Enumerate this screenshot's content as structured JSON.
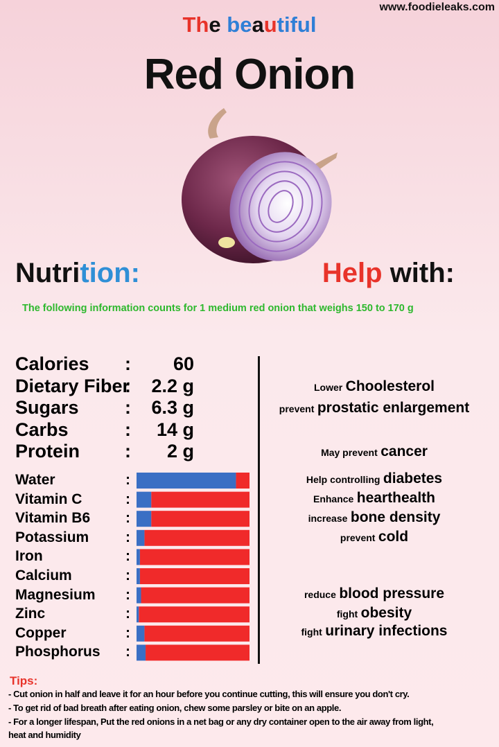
{
  "header": {
    "site": "www.foodieleaks.com",
    "subtitle_parts": [
      {
        "text": "Th",
        "color": "#e8332a"
      },
      {
        "text": "e ",
        "color": "#111111"
      },
      {
        "text": "be",
        "color": "#2f7fd6"
      },
      {
        "text": "a",
        "color": "#111111"
      },
      {
        "text": "u",
        "color": "#e8332a"
      },
      {
        "text": "ti",
        "color": "#2f7fd6"
      },
      {
        "text": "ful",
        "color": "#2f7fd6"
      }
    ],
    "title": "Red Onion"
  },
  "nutrition": {
    "heading_parts": [
      {
        "text": "Nutri",
        "color": "#111111"
      },
      {
        "text": "tion:",
        "color": "#2f8fd6"
      }
    ],
    "note": "The following information counts for 1 medium red onion that weighs 150 to 170 g",
    "separator": ":",
    "facts": [
      {
        "label": "Calories",
        "value": "60"
      },
      {
        "label": "Dietary Fiber",
        "value": "2.2 g"
      },
      {
        "label": "Sugars",
        "value": "6.3 g"
      },
      {
        "label": "Carbs",
        "value": "14 g"
      },
      {
        "label": "Protein",
        "value": "2 g"
      }
    ],
    "xlim": [
      0,
      100
    ],
    "fill_color": "#3a6fc4",
    "rest_color": "#f02a2a",
    "bars": [
      {
        "label": "Water",
        "value": 88
      },
      {
        "label": "Vitamin C",
        "value": 13
      },
      {
        "label": "Vitamin B6",
        "value": 13
      },
      {
        "label": "Potassium",
        "value": 7
      },
      {
        "label": "Iron",
        "value": 3
      },
      {
        "label": "Calcium",
        "value": 3
      },
      {
        "label": "Magnesium",
        "value": 4
      },
      {
        "label": "Zinc",
        "value": 2
      },
      {
        "label": "Copper",
        "value": 7
      },
      {
        "label": "Phosphorus",
        "value": 8
      }
    ]
  },
  "help": {
    "heading_parts": [
      {
        "text": "Help",
        "color": "#e8332a"
      },
      {
        "text": " with:",
        "color": "#111111"
      }
    ],
    "items": [
      {
        "prefix": "Lower",
        "text": "Choolesterol"
      },
      {
        "prefix": "prevent",
        "text": "prostatic enlargement"
      },
      {
        "prefix": "May prevent",
        "text": "cancer"
      },
      {
        "prefix": "Help controlling",
        "text": "diabetes"
      },
      {
        "prefix": "Enhance",
        "text": "hearthealth"
      },
      {
        "prefix": "increase",
        "text": "bone density"
      },
      {
        "prefix": "prevent",
        "text": "cold"
      },
      {
        "prefix": "reduce",
        "text": "blood pressure"
      },
      {
        "prefix": "fight",
        "text": "obesity"
      },
      {
        "prefix": "fight",
        "text": "urinary infections"
      }
    ]
  },
  "tips": {
    "title": "Tips:",
    "items": [
      "- Cut onion in half and leave it for an hour before you continue cutting, this will ensure you don't cry.",
      "- To get rid of bad breath after eating onion, chew some parsley or bite on an apple.",
      "- For a longer lifespan, Put the red onions in a net bag or any dry container open to the air away from light, heat and humidity"
    ]
  }
}
